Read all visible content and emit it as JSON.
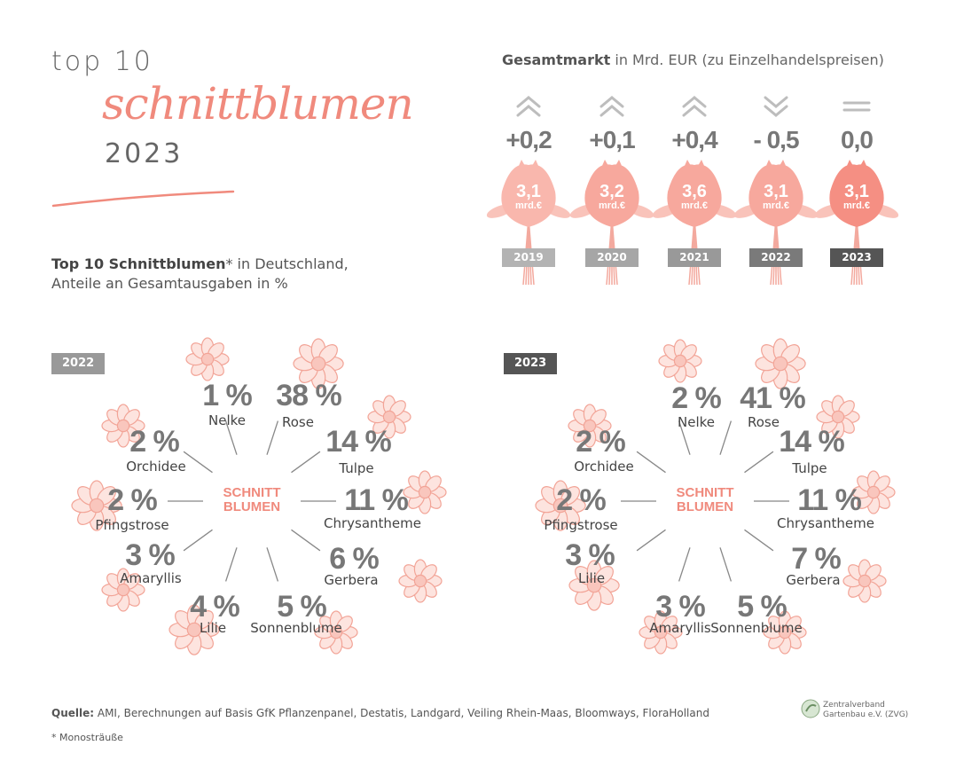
{
  "header": {
    "title_line1": "top 10",
    "title_script": "schnittblumen",
    "title_year": "2023"
  },
  "subtitle": {
    "bold": "Top 10 Schnittblumen",
    "rest1": "* in Deutschland,",
    "line2": "Anteile an Gesamtausgaben in %"
  },
  "market": {
    "title_bold": "Gesamtmarkt",
    "title_rest": " in Mrd. EUR (zu Einzelhandelspreisen)",
    "unit": "mrd.€"
  },
  "colors": {
    "accent": "#f08a7d",
    "accent_light": "#f9bdb3",
    "gray_light": "#b3b3b3",
    "gray_mid": "#999999",
    "gray_dark": "#555555"
  },
  "chart_data": [
    {
      "type": "bar",
      "title": "Gesamtmarkt in Mrd. EUR (zu Einzelhandelspreisen)",
      "categories": [
        "2019",
        "2020",
        "2021",
        "2022",
        "2023"
      ],
      "values": [
        3.1,
        3.2,
        3.6,
        3.1,
        3.1
      ],
      "value_labels": [
        "3,1",
        "3,2",
        "3,6",
        "3,1",
        "3,1"
      ],
      "changes": [
        "+0,2",
        "+0,1",
        "+0,4",
        "- 0,5",
        "0,0"
      ],
      "trend": [
        "up",
        "up",
        "up",
        "down",
        "flat"
      ],
      "badge_colors": [
        "#b3b3b3",
        "#a6a6a6",
        "#999999",
        "#7a7a7a",
        "#555555"
      ]
    },
    {
      "type": "pie",
      "title": "2022",
      "center_label": [
        "SCHNITT",
        "BLUMEN"
      ],
      "badge_color": "#999999",
      "slices": [
        {
          "name": "Nelke",
          "pct": "1 %",
          "value": 1
        },
        {
          "name": "Rose",
          "pct": "38 %",
          "value": 38
        },
        {
          "name": "Tulpe",
          "pct": "14 %",
          "value": 14
        },
        {
          "name": "Chrysantheme",
          "pct": "11 %",
          "value": 11
        },
        {
          "name": "Gerbera",
          "pct": "6 %",
          "value": 6
        },
        {
          "name": "Sonnenblume",
          "pct": "5 %",
          "value": 5
        },
        {
          "name": "Lilie",
          "pct": "4 %",
          "value": 4
        },
        {
          "name": "Amaryllis",
          "pct": "3 %",
          "value": 3
        },
        {
          "name": "Pfingstrose",
          "pct": "2 %",
          "value": 2
        },
        {
          "name": "Orchidee",
          "pct": "2 %",
          "value": 2
        }
      ]
    },
    {
      "type": "pie",
      "title": "2023",
      "center_label": [
        "SCHNITT",
        "BLUMEN"
      ],
      "badge_color": "#555555",
      "slices": [
        {
          "name": "Nelke",
          "pct": "2 %",
          "value": 2
        },
        {
          "name": "Rose",
          "pct": "41 %",
          "value": 41
        },
        {
          "name": "Tulpe",
          "pct": "14 %",
          "value": 14
        },
        {
          "name": "Chrysantheme",
          "pct": "11 %",
          "value": 11
        },
        {
          "name": "Gerbera",
          "pct": "7 %",
          "value": 7
        },
        {
          "name": "Sonnenblume",
          "pct": "5 %",
          "value": 5
        },
        {
          "name": "Amaryllis",
          "pct": "3 %",
          "value": 3
        },
        {
          "name": "Lilie",
          "pct": "3 %",
          "value": 3
        },
        {
          "name": "Pfingstrose",
          "pct": "2 %",
          "value": 2
        },
        {
          "name": "Orchidee",
          "pct": "2 %",
          "value": 2
        }
      ]
    }
  ],
  "footer": {
    "source_bold": "Quelle:",
    "source_rest": " AMI, Berechnungen auf Basis GfK Pflanzenpanel, Destatis, Landgard, Veiling Rhein-Maas, Bloomways, FloraHolland",
    "footnote": "* Monosträuße",
    "logo_line1": "Zentralverband",
    "logo_line2": "Gartenbau e.V. (ZVG)"
  }
}
